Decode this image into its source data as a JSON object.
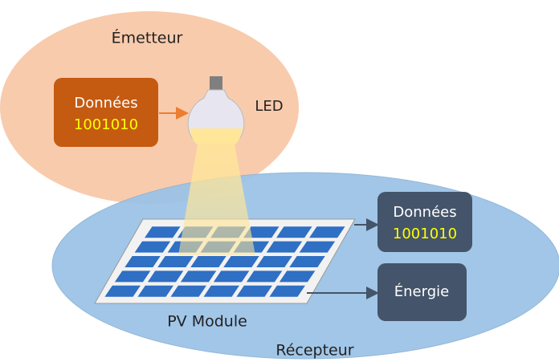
{
  "emitter": {
    "label": "Émetteur",
    "data_box": {
      "title": "Données",
      "bits": "1001010"
    },
    "led_label": "LED"
  },
  "receiver": {
    "label": "Récepteur",
    "module_label": "PV Module",
    "outputs": [
      {
        "title": "Données",
        "bits": "1001010"
      },
      {
        "title": "Énergie"
      }
    ]
  }
}
